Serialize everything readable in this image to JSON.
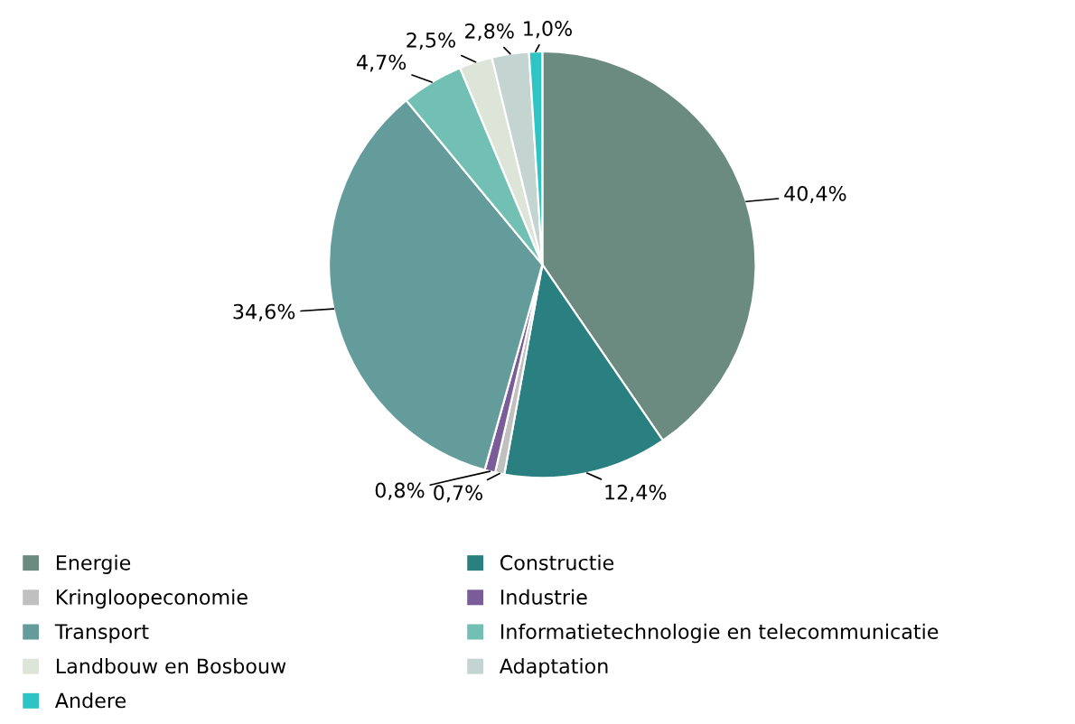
{
  "chart_data": {
    "type": "pie",
    "categories": [
      "Energie",
      "Constructie",
      "Kringloopeconomie",
      "Industrie",
      "Transport",
      "Informatietechnologie en telecommunicatie",
      "Landbouw en Bosbouw",
      "Adaptation",
      "Andere"
    ],
    "values": [
      40.4,
      12.4,
      0.7,
      0.8,
      34.6,
      4.7,
      2.5,
      2.8,
      1.0
    ],
    "value_labels": [
      "40,4%",
      "12,4%",
      "0,7%",
      "0,8%",
      "34,6%",
      "4,7%",
      "2,5%",
      "2,8%",
      "1,0%"
    ],
    "colors": [
      "#6b8a80",
      "#2a8080",
      "#c0c0c0",
      "#7a5c99",
      "#649c9c",
      "#72c0b4",
      "#dde4d8",
      "#c4d4d0",
      "#2ec4c4"
    ],
    "legend": "bottom"
  }
}
